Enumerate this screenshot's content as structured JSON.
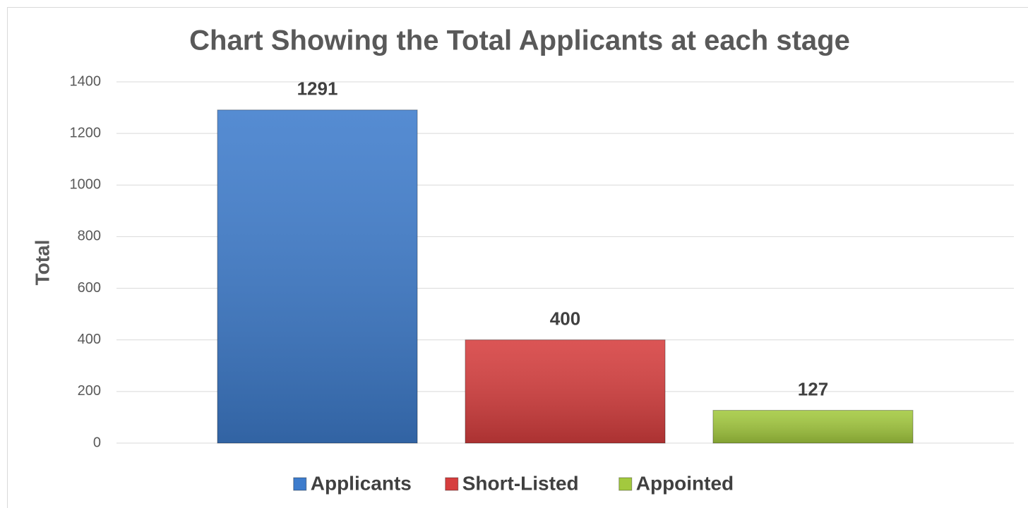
{
  "chart_data": {
    "type": "bar",
    "title": "Chart Showing the Total Applicants at each stage",
    "ylabel": "Total",
    "categories": [
      null
    ],
    "series": [
      {
        "name": "Applicants",
        "color": "#3e7ccc",
        "values": [
          1291
        ]
      },
      {
        "name": "Short-Listed",
        "color": "#d63e3e",
        "values": [
          400
        ]
      },
      {
        "name": "Appointed",
        "color": "#a3c93e",
        "values": [
          127
        ]
      }
    ],
    "ylim": [
      0,
      1400
    ],
    "yticks": [
      0,
      200,
      400,
      600,
      800,
      1000,
      1200,
      1400
    ],
    "grid": true,
    "legend": "bottom"
  }
}
